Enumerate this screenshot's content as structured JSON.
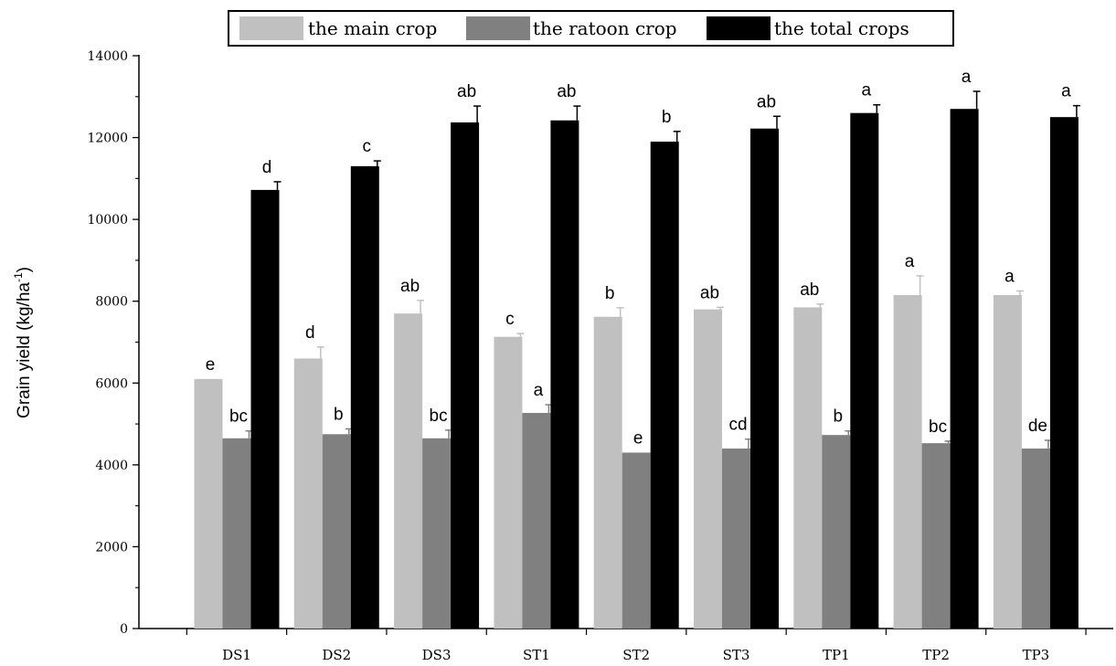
{
  "chart_data": {
    "type": "bar",
    "title": "",
    "xlabel": "",
    "ylabel": "Grain yield (kg/ha",
    "ylabel_superscript": "-1",
    "ylabel_suffix": ")",
    "ylim": [
      0,
      14000
    ],
    "yticks": [
      0,
      2000,
      4000,
      6000,
      8000,
      10000,
      12000,
      14000
    ],
    "legend_position": "top",
    "categories": [
      "DS1",
      "DS2",
      "DS3",
      "ST1",
      "ST2",
      "ST3",
      "TP1",
      "TP2",
      "TP3"
    ],
    "series": [
      {
        "name": "the main crop",
        "color": "#c0c0c0",
        "values": [
          6100,
          6600,
          7700,
          7130,
          7620,
          7800,
          7850,
          8150,
          8150
        ],
        "errors": [
          0,
          280,
          320,
          80,
          220,
          50,
          80,
          470,
          100
        ],
        "labels": [
          "e",
          "d",
          "ab",
          "c",
          "b",
          "ab",
          "ab",
          "a",
          "a"
        ]
      },
      {
        "name": "the ratoon crop",
        "color": "#808080",
        "values": [
          4650,
          4750,
          4650,
          5270,
          4300,
          4400,
          4730,
          4530,
          4400
        ],
        "errors": [
          180,
          130,
          200,
          200,
          0,
          230,
          100,
          50,
          200
        ],
        "labels": [
          "bc",
          "b",
          "bc",
          "a",
          "e",
          "cd",
          "b",
          "bc",
          "de"
        ]
      },
      {
        "name": "the total crops",
        "color": "#000000",
        "values": [
          10720,
          11300,
          12370,
          12420,
          11900,
          12220,
          12600,
          12700,
          12500
        ],
        "errors": [
          200,
          130,
          400,
          350,
          250,
          300,
          200,
          430,
          280
        ],
        "labels": [
          "d",
          "c",
          "ab",
          "ab",
          "b",
          "ab",
          "a",
          "a",
          "a"
        ]
      }
    ]
  }
}
